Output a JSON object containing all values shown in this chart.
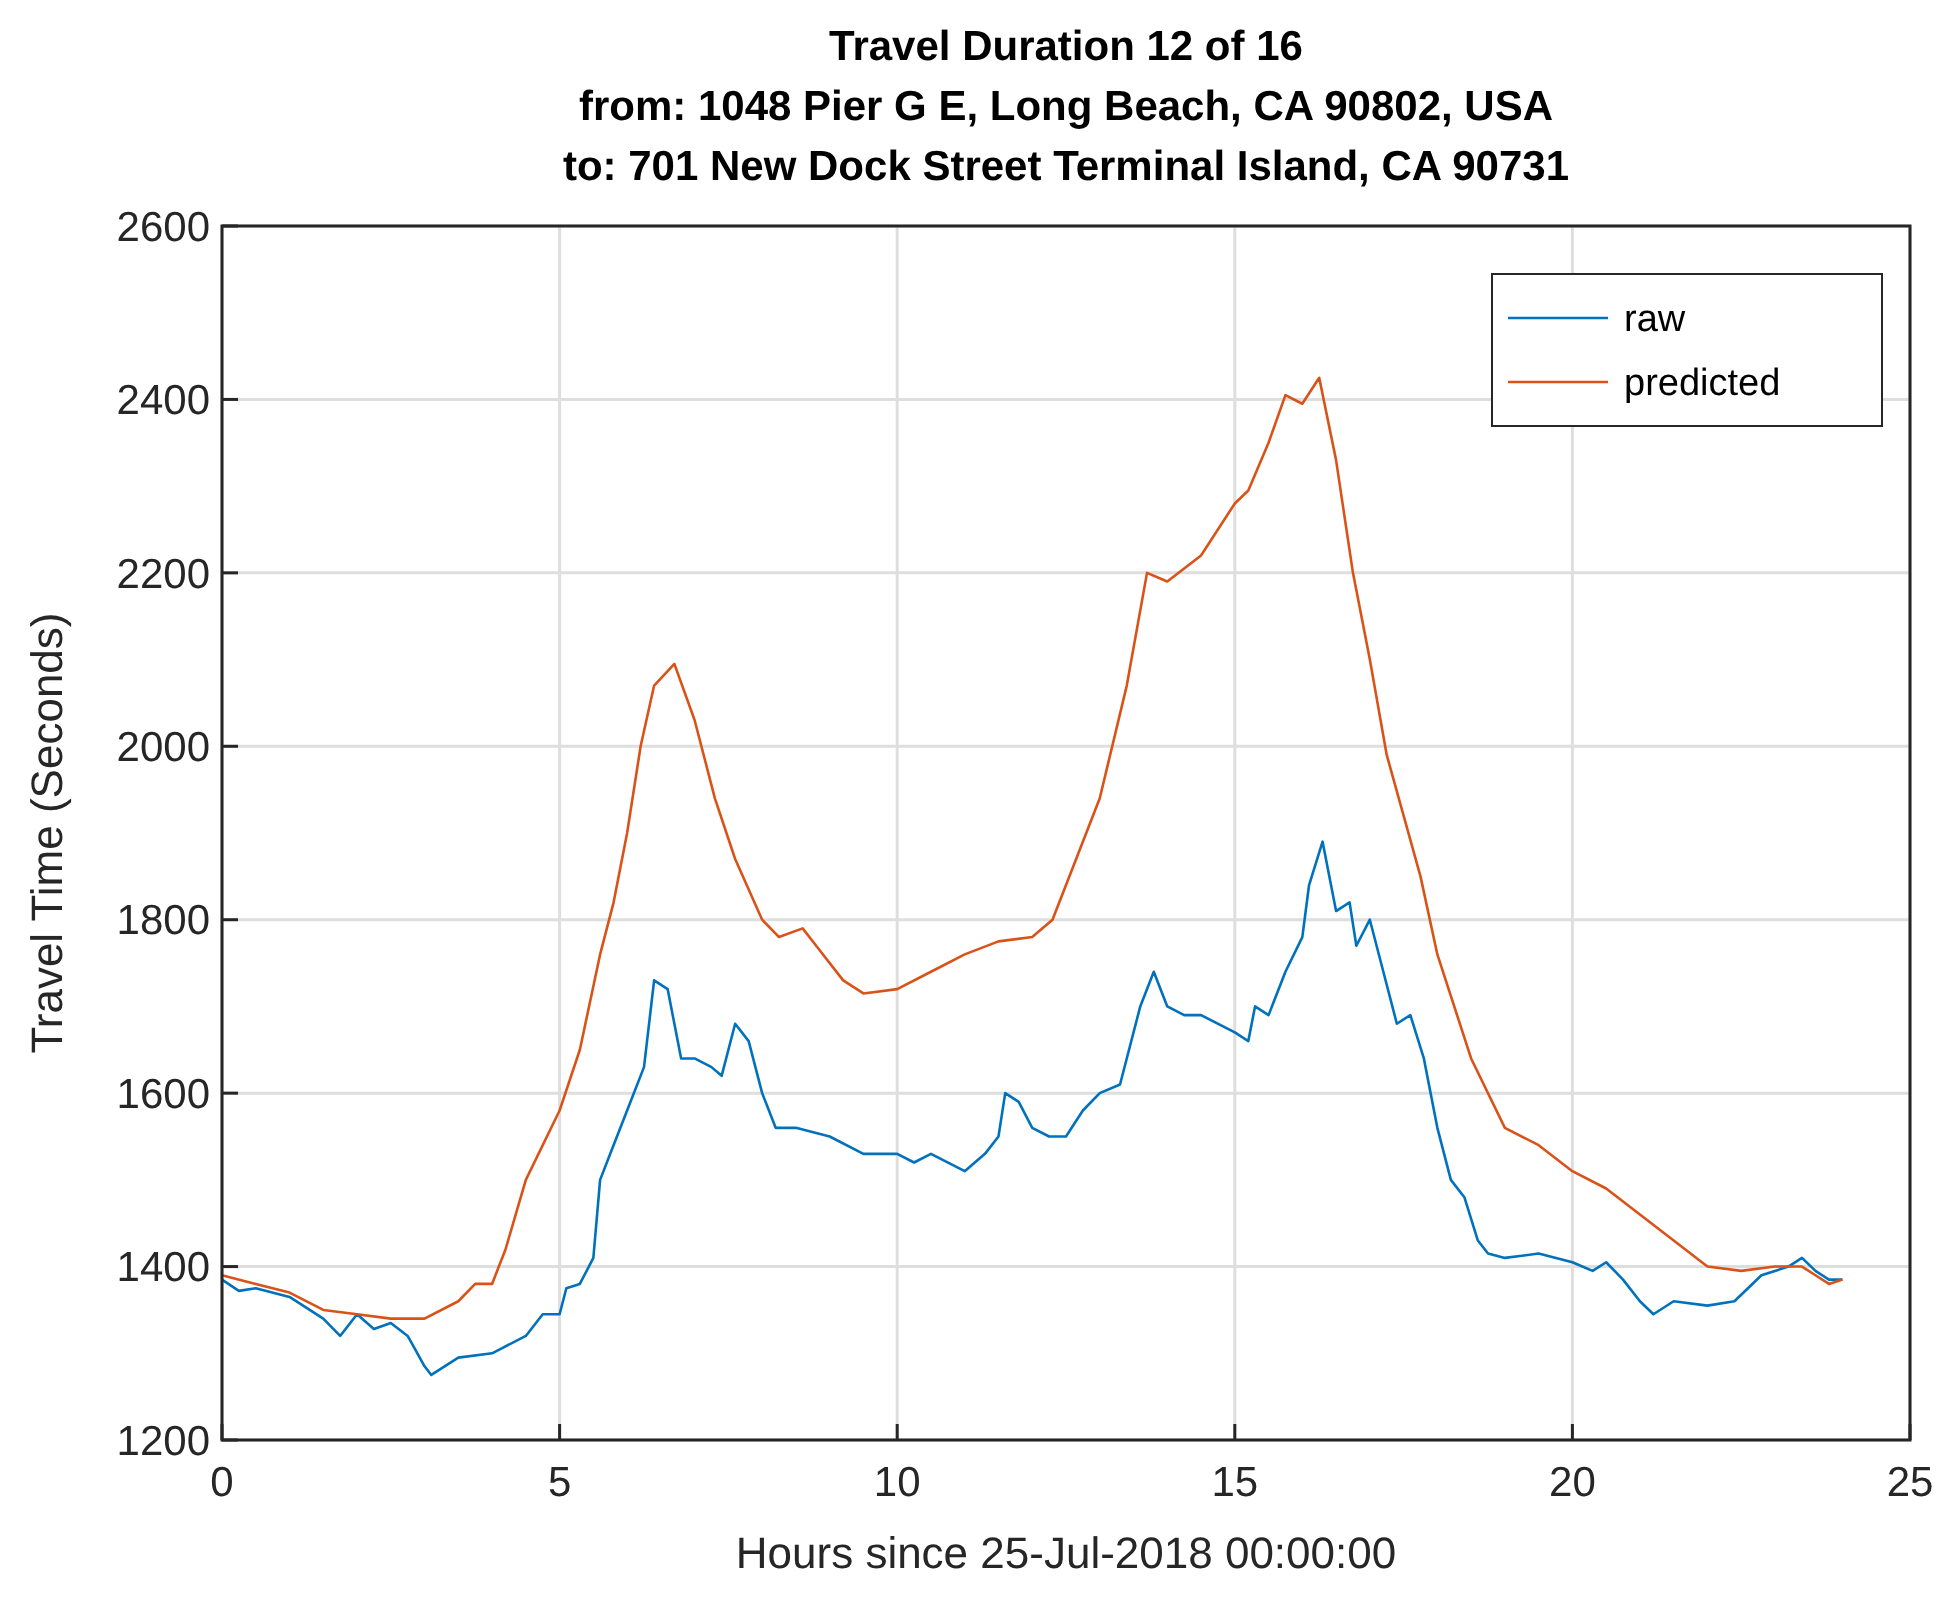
{
  "chart_data": {
    "type": "line",
    "title": "Travel Duration 12 of 16\nfrom: 1048 Pier G E, Long Beach, CA 90802, USA\nto: 701 New Dock Street Terminal Island, CA 90731",
    "xlabel": "Hours since 25-Jul-2018 00:00:00",
    "ylabel": "Travel Time (Seconds)",
    "xlim": [
      0,
      25
    ],
    "ylim": [
      1200,
      2600
    ],
    "xticks": [
      0,
      5,
      10,
      15,
      20,
      25
    ],
    "yticks": [
      1200,
      1400,
      1600,
      1800,
      2000,
      2200,
      2400,
      2600
    ],
    "grid": true,
    "legend": "top right",
    "line_style": "solid",
    "marker": "none",
    "series": [
      {
        "name": "raw",
        "color": "#0072bd",
        "x": [
          0,
          0.25,
          0.5,
          1,
          1.5,
          1.75,
          2,
          2.25,
          2.5,
          2.75,
          3,
          3.1,
          3.5,
          4,
          4.5,
          4.75,
          5,
          5.1,
          5.3,
          5.5,
          5.6,
          5.75,
          6,
          6.25,
          6.4,
          6.6,
          6.8,
          7,
          7.25,
          7.4,
          7.6,
          7.8,
          8,
          8.2,
          8.5,
          9,
          9.5,
          10,
          10.25,
          10.5,
          11,
          11.3,
          11.5,
          11.6,
          11.8,
          12,
          12.25,
          12.5,
          12.75,
          13,
          13.3,
          13.6,
          13.8,
          14,
          14.25,
          14.5,
          15,
          15.2,
          15.3,
          15.5,
          15.75,
          16,
          16.1,
          16.3,
          16.5,
          16.7,
          16.8,
          17,
          17.2,
          17.4,
          17.6,
          17.8,
          18,
          18.2,
          18.4,
          18.6,
          18.75,
          19,
          19.5,
          20,
          20.3,
          20.5,
          20.75,
          21,
          21.2,
          21.5,
          22,
          22.4,
          22.6,
          22.8,
          23,
          23.2,
          23.4,
          23.6,
          23.8,
          24
        ],
        "values": [
          1385,
          1372,
          1375,
          1365,
          1340,
          1320,
          1345,
          1328,
          1335,
          1320,
          1285,
          1275,
          1295,
          1300,
          1320,
          1345,
          1345,
          1375,
          1380,
          1410,
          1500,
          1530,
          1580,
          1630,
          1730,
          1720,
          1640,
          1640,
          1630,
          1620,
          1680,
          1660,
          1600,
          1560,
          1560,
          1550,
          1530,
          1530,
          1520,
          1530,
          1510,
          1530,
          1550,
          1600,
          1590,
          1560,
          1550,
          1550,
          1580,
          1600,
          1610,
          1700,
          1740,
          1700,
          1690,
          1690,
          1670,
          1660,
          1700,
          1690,
          1740,
          1780,
          1840,
          1890,
          1810,
          1820,
          1770,
          1800,
          1740,
          1680,
          1690,
          1640,
          1560,
          1500,
          1480,
          1430,
          1415,
          1410,
          1415,
          1405,
          1395,
          1405,
          1385,
          1360,
          1345,
          1360,
          1355,
          1360,
          1375,
          1390,
          1395,
          1400,
          1410,
          1395,
          1385,
          1385
        ]
      },
      {
        "name": "predicted",
        "color": "#d95319",
        "x": [
          0,
          0.5,
          1,
          1.5,
          2,
          2.5,
          3,
          3.5,
          3.75,
          4,
          4.2,
          4.5,
          5,
          5.3,
          5.6,
          5.8,
          6,
          6.2,
          6.4,
          6.7,
          7,
          7.3,
          7.6,
          8,
          8.25,
          8.6,
          8.8,
          9.2,
          9.5,
          10,
          10.5,
          11,
          11.5,
          12,
          12.3,
          12.6,
          13,
          13.4,
          13.7,
          14,
          14.5,
          15,
          15.2,
          15.5,
          15.75,
          16,
          16.25,
          16.5,
          16.75,
          17,
          17.25,
          17.5,
          17.75,
          18,
          18.25,
          18.5,
          19,
          19.5,
          20,
          20.5,
          21,
          21.5,
          22,
          22.5,
          23,
          23.4,
          23.6,
          23.8,
          24
        ],
        "values": [
          1390,
          1380,
          1370,
          1350,
          1345,
          1340,
          1340,
          1360,
          1380,
          1380,
          1420,
          1500,
          1580,
          1650,
          1760,
          1820,
          1900,
          2000,
          2070,
          2095,
          2030,
          1940,
          1870,
          1800,
          1780,
          1790,
          1770,
          1730,
          1715,
          1720,
          1740,
          1760,
          1775,
          1780,
          1800,
          1860,
          1940,
          2070,
          2200,
          2190,
          2220,
          2280,
          2295,
          2350,
          2405,
          2395,
          2425,
          2330,
          2200,
          2100,
          1990,
          1920,
          1850,
          1760,
          1700,
          1640,
          1560,
          1540,
          1510,
          1490,
          1460,
          1430,
          1400,
          1395,
          1400,
          1400,
          1390,
          1380,
          1385
        ]
      }
    ]
  }
}
